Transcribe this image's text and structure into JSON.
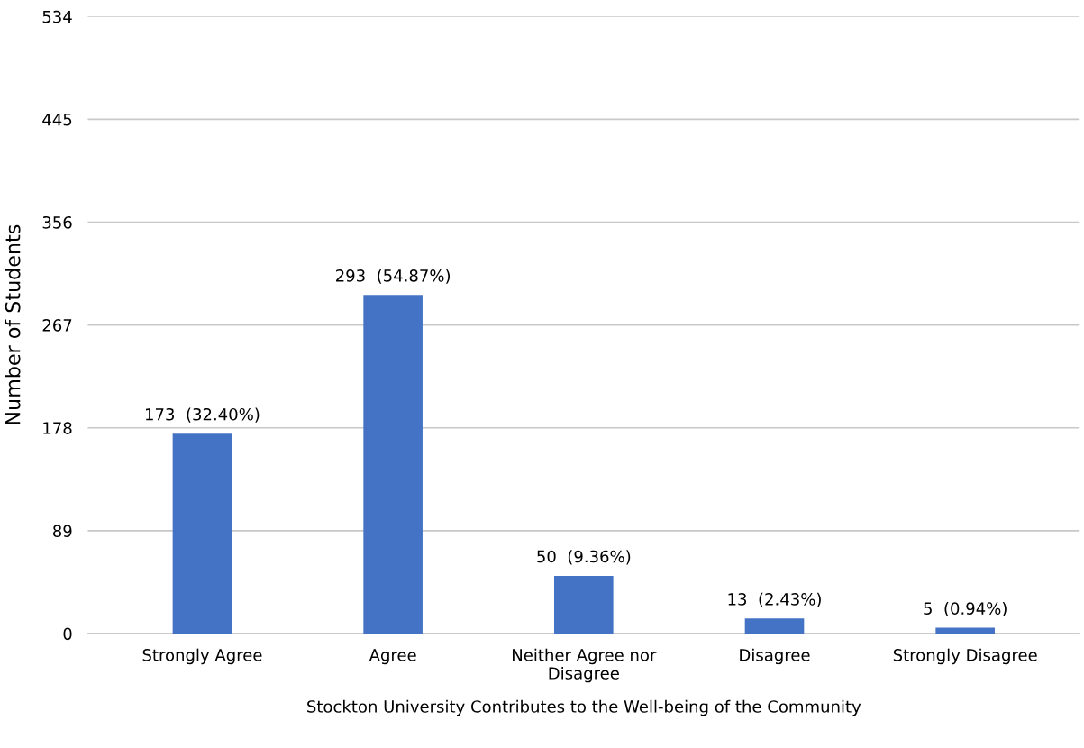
{
  "chart_data": {
    "type": "bar",
    "xlabel": "Stockton University Contributes to the Well-being of the Community",
    "ylabel": "Number of Students",
    "categories": [
      "Strongly Agree",
      "Agree",
      "Neither Agree nor\nDisagree",
      "Disagree",
      "Strongly Disagree"
    ],
    "values": [
      173,
      293,
      50,
      13,
      5
    ],
    "value_labels": [
      "173  (32.40%)",
      "293  (54.87%)",
      "50  (9.36%)",
      "13  (2.43%)",
      "5  (0.94%)"
    ],
    "color": "#4472c4",
    "ylim": [
      0,
      534
    ],
    "yticks": [
      0,
      89,
      178,
      267,
      356,
      445,
      534
    ],
    "grid": "y"
  }
}
